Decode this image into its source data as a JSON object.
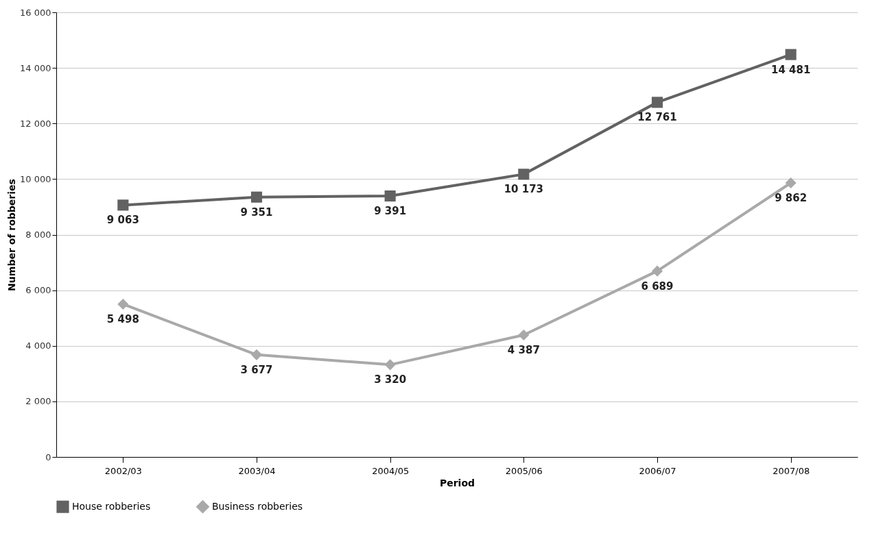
{
  "chart_data": {
    "type": "line",
    "xlabel": "Period",
    "ylabel": "Number of robberies",
    "categories": [
      "2002/03",
      "2003/04",
      "2004/05",
      "2005/06",
      "2006/07",
      "2007/08"
    ],
    "series": [
      {
        "name": "House robberies",
        "color": "#626262",
        "marker": "square",
        "values": [
          9063,
          9351,
          9391,
          10173,
          12761,
          14481
        ],
        "value_labels": [
          "9 063",
          "9 351",
          "9 391",
          "10 173",
          "12 761",
          "14 481"
        ]
      },
      {
        "name": "Business robberies",
        "color": "#a9a9a9",
        "marker": "diamond",
        "values": [
          5498,
          3677,
          3320,
          4387,
          6689,
          9862
        ],
        "value_labels": [
          "5 498",
          "3 677",
          "3 320",
          "4 387",
          "6 689",
          "9 862"
        ]
      }
    ],
    "ylim": [
      0,
      16000
    ],
    "yticks": [
      {
        "value": 0,
        "label": "0"
      },
      {
        "value": 2000,
        "label": "2 000"
      },
      {
        "value": 4000,
        "label": "4 000"
      },
      {
        "value": 6000,
        "label": "6 000"
      },
      {
        "value": 8000,
        "label": "8 000"
      },
      {
        "value": 10000,
        "label": "10 000"
      },
      {
        "value": 12000,
        "label": "12 000"
      },
      {
        "value": 14000,
        "label": "14 000"
      },
      {
        "value": 16000,
        "label": "16 000"
      }
    ],
    "grid": "y",
    "legend": "bottom",
    "line_style": "solid"
  }
}
